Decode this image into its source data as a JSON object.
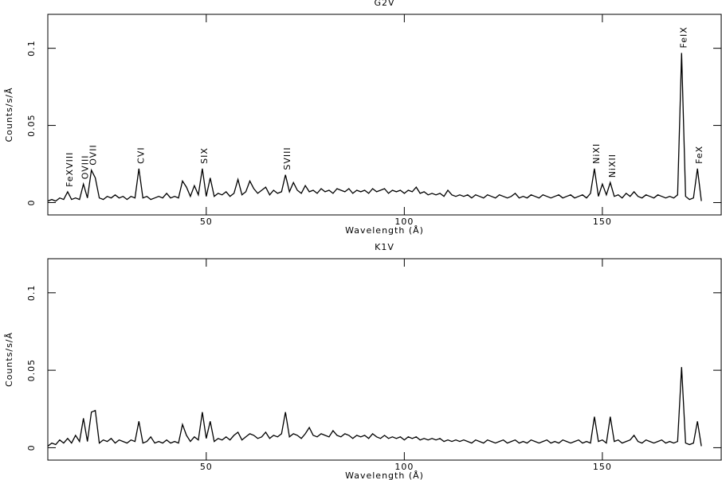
{
  "chart_data": [
    {
      "type": "line",
      "title": "G2V",
      "xlabel": "Wavelength (Å)",
      "ylabel": "Counts/s/Å",
      "color": "#000000",
      "xlim": [
        10,
        180
      ],
      "ylim": [
        -0.008,
        0.122
      ],
      "xticks": [
        50,
        100,
        150
      ],
      "yticks": [
        0,
        0.05,
        0.1
      ],
      "x": [
        10,
        11,
        12,
        13,
        14,
        15,
        16,
        17,
        18,
        19,
        20,
        21,
        22,
        23,
        24,
        25,
        26,
        27,
        28,
        29,
        30,
        31,
        32,
        33,
        34,
        35,
        36,
        37,
        38,
        39,
        40,
        41,
        42,
        43,
        44,
        45,
        46,
        47,
        48,
        49,
        50,
        51,
        52,
        53,
        54,
        55,
        56,
        57,
        58,
        59,
        60,
        61,
        62,
        63,
        64,
        65,
        66,
        67,
        68,
        69,
        70,
        71,
        72,
        73,
        74,
        75,
        76,
        77,
        78,
        79,
        80,
        81,
        82,
        83,
        84,
        85,
        86,
        87,
        88,
        89,
        90,
        91,
        92,
        93,
        94,
        95,
        96,
        97,
        98,
        99,
        100,
        101,
        102,
        103,
        104,
        105,
        106,
        107,
        108,
        109,
        110,
        111,
        112,
        113,
        114,
        115,
        116,
        117,
        118,
        119,
        120,
        121,
        122,
        123,
        124,
        125,
        126,
        127,
        128,
        129,
        130,
        131,
        132,
        133,
        134,
        135,
        136,
        137,
        138,
        139,
        140,
        141,
        142,
        143,
        144,
        145,
        146,
        147,
        148,
        149,
        150,
        151,
        152,
        153,
        154,
        155,
        156,
        157,
        158,
        159,
        160,
        161,
        162,
        163,
        164,
        165,
        166,
        167,
        168,
        169,
        170,
        171,
        172,
        173,
        174,
        175
      ],
      "values": [
        0.001,
        0.002,
        0.001,
        0.003,
        0.002,
        0.007,
        0.002,
        0.003,
        0.002,
        0.012,
        0.003,
        0.021,
        0.016,
        0.003,
        0.002,
        0.004,
        0.003,
        0.005,
        0.003,
        0.004,
        0.002,
        0.004,
        0.003,
        0.022,
        0.003,
        0.004,
        0.002,
        0.003,
        0.004,
        0.003,
        0.006,
        0.003,
        0.004,
        0.003,
        0.014,
        0.01,
        0.004,
        0.011,
        0.005,
        0.022,
        0.004,
        0.016,
        0.004,
        0.006,
        0.005,
        0.007,
        0.004,
        0.006,
        0.015,
        0.005,
        0.007,
        0.014,
        0.009,
        0.006,
        0.008,
        0.01,
        0.005,
        0.008,
        0.006,
        0.007,
        0.018,
        0.007,
        0.013,
        0.008,
        0.006,
        0.011,
        0.007,
        0.008,
        0.006,
        0.009,
        0.007,
        0.008,
        0.006,
        0.009,
        0.008,
        0.007,
        0.009,
        0.006,
        0.008,
        0.007,
        0.008,
        0.006,
        0.009,
        0.007,
        0.008,
        0.009,
        0.006,
        0.008,
        0.007,
        0.008,
        0.006,
        0.008,
        0.007,
        0.01,
        0.006,
        0.007,
        0.005,
        0.006,
        0.005,
        0.006,
        0.004,
        0.008,
        0.005,
        0.004,
        0.005,
        0.004,
        0.005,
        0.003,
        0.005,
        0.004,
        0.003,
        0.005,
        0.004,
        0.003,
        0.005,
        0.004,
        0.003,
        0.004,
        0.006,
        0.003,
        0.004,
        0.003,
        0.005,
        0.004,
        0.003,
        0.005,
        0.004,
        0.003,
        0.004,
        0.005,
        0.003,
        0.004,
        0.005,
        0.003,
        0.004,
        0.005,
        0.003,
        0.006,
        0.022,
        0.004,
        0.012,
        0.005,
        0.013,
        0.004,
        0.005,
        0.003,
        0.006,
        0.004,
        0.007,
        0.004,
        0.003,
        0.005,
        0.004,
        0.003,
        0.005,
        0.004,
        0.003,
        0.004,
        0.003,
        0.005,
        0.097,
        0.004,
        0.002,
        0.003,
        0.022,
        0.001
      ],
      "annotations": [
        {
          "text": "FeXVIII",
          "x": 15
        },
        {
          "text": "OVIII",
          "x": 19
        },
        {
          "text": "OVII",
          "x": 21
        },
        {
          "text": "CVI",
          "x": 33
        },
        {
          "text": "SIX",
          "x": 49
        },
        {
          "text": "SVIII",
          "x": 70
        },
        {
          "text": "NiXI",
          "x": 148
        },
        {
          "text": "NiXII",
          "x": 152
        },
        {
          "text": "FeIX",
          "x": 170
        },
        {
          "text": "FeX",
          "x": 174
        }
      ]
    },
    {
      "type": "line",
      "title": "K1V",
      "xlabel": "Wavelength (Å)",
      "ylabel": "Counts/s/Å",
      "color": "#000000",
      "xlim": [
        10,
        180
      ],
      "ylim": [
        -0.008,
        0.122
      ],
      "xticks": [
        50,
        100,
        150
      ],
      "yticks": [
        0,
        0.05,
        0.1
      ],
      "x": [
        10,
        11,
        12,
        13,
        14,
        15,
        16,
        17,
        18,
        19,
        20,
        21,
        22,
        23,
        24,
        25,
        26,
        27,
        28,
        29,
        30,
        31,
        32,
        33,
        34,
        35,
        36,
        37,
        38,
        39,
        40,
        41,
        42,
        43,
        44,
        45,
        46,
        47,
        48,
        49,
        50,
        51,
        52,
        53,
        54,
        55,
        56,
        57,
        58,
        59,
        60,
        61,
        62,
        63,
        64,
        65,
        66,
        67,
        68,
        69,
        70,
        71,
        72,
        73,
        74,
        75,
        76,
        77,
        78,
        79,
        80,
        81,
        82,
        83,
        84,
        85,
        86,
        87,
        88,
        89,
        90,
        91,
        92,
        93,
        94,
        95,
        96,
        97,
        98,
        99,
        100,
        101,
        102,
        103,
        104,
        105,
        106,
        107,
        108,
        109,
        110,
        111,
        112,
        113,
        114,
        115,
        116,
        117,
        118,
        119,
        120,
        121,
        122,
        123,
        124,
        125,
        126,
        127,
        128,
        129,
        130,
        131,
        132,
        133,
        134,
        135,
        136,
        137,
        138,
        139,
        140,
        141,
        142,
        143,
        144,
        145,
        146,
        147,
        148,
        149,
        150,
        151,
        152,
        153,
        154,
        155,
        156,
        157,
        158,
        159,
        160,
        161,
        162,
        163,
        164,
        165,
        166,
        167,
        168,
        169,
        170,
        171,
        172,
        173,
        174,
        175
      ],
      "values": [
        0.001,
        0.003,
        0.002,
        0.005,
        0.003,
        0.006,
        0.003,
        0.008,
        0.004,
        0.019,
        0.004,
        0.023,
        0.024,
        0.003,
        0.005,
        0.004,
        0.006,
        0.003,
        0.005,
        0.004,
        0.003,
        0.005,
        0.004,
        0.017,
        0.003,
        0.004,
        0.007,
        0.003,
        0.004,
        0.003,
        0.005,
        0.003,
        0.004,
        0.003,
        0.015,
        0.008,
        0.004,
        0.007,
        0.005,
        0.023,
        0.006,
        0.017,
        0.004,
        0.006,
        0.005,
        0.007,
        0.005,
        0.008,
        0.01,
        0.005,
        0.007,
        0.009,
        0.008,
        0.006,
        0.007,
        0.01,
        0.006,
        0.008,
        0.007,
        0.009,
        0.023,
        0.007,
        0.009,
        0.008,
        0.006,
        0.009,
        0.013,
        0.008,
        0.007,
        0.009,
        0.008,
        0.007,
        0.011,
        0.008,
        0.007,
        0.009,
        0.008,
        0.006,
        0.008,
        0.007,
        0.008,
        0.006,
        0.009,
        0.007,
        0.006,
        0.008,
        0.006,
        0.007,
        0.006,
        0.007,
        0.005,
        0.007,
        0.006,
        0.007,
        0.005,
        0.006,
        0.005,
        0.006,
        0.005,
        0.006,
        0.004,
        0.005,
        0.004,
        0.005,
        0.004,
        0.005,
        0.004,
        0.003,
        0.005,
        0.004,
        0.003,
        0.005,
        0.004,
        0.003,
        0.004,
        0.005,
        0.003,
        0.004,
        0.005,
        0.003,
        0.004,
        0.003,
        0.005,
        0.004,
        0.003,
        0.004,
        0.005,
        0.003,
        0.004,
        0.003,
        0.005,
        0.004,
        0.003,
        0.004,
        0.005,
        0.003,
        0.004,
        0.003,
        0.02,
        0.004,
        0.005,
        0.003,
        0.02,
        0.004,
        0.005,
        0.003,
        0.004,
        0.005,
        0.008,
        0.004,
        0.003,
        0.005,
        0.004,
        0.003,
        0.004,
        0.005,
        0.003,
        0.004,
        0.003,
        0.004,
        0.052,
        0.003,
        0.002,
        0.003,
        0.017,
        0.001
      ]
    }
  ]
}
